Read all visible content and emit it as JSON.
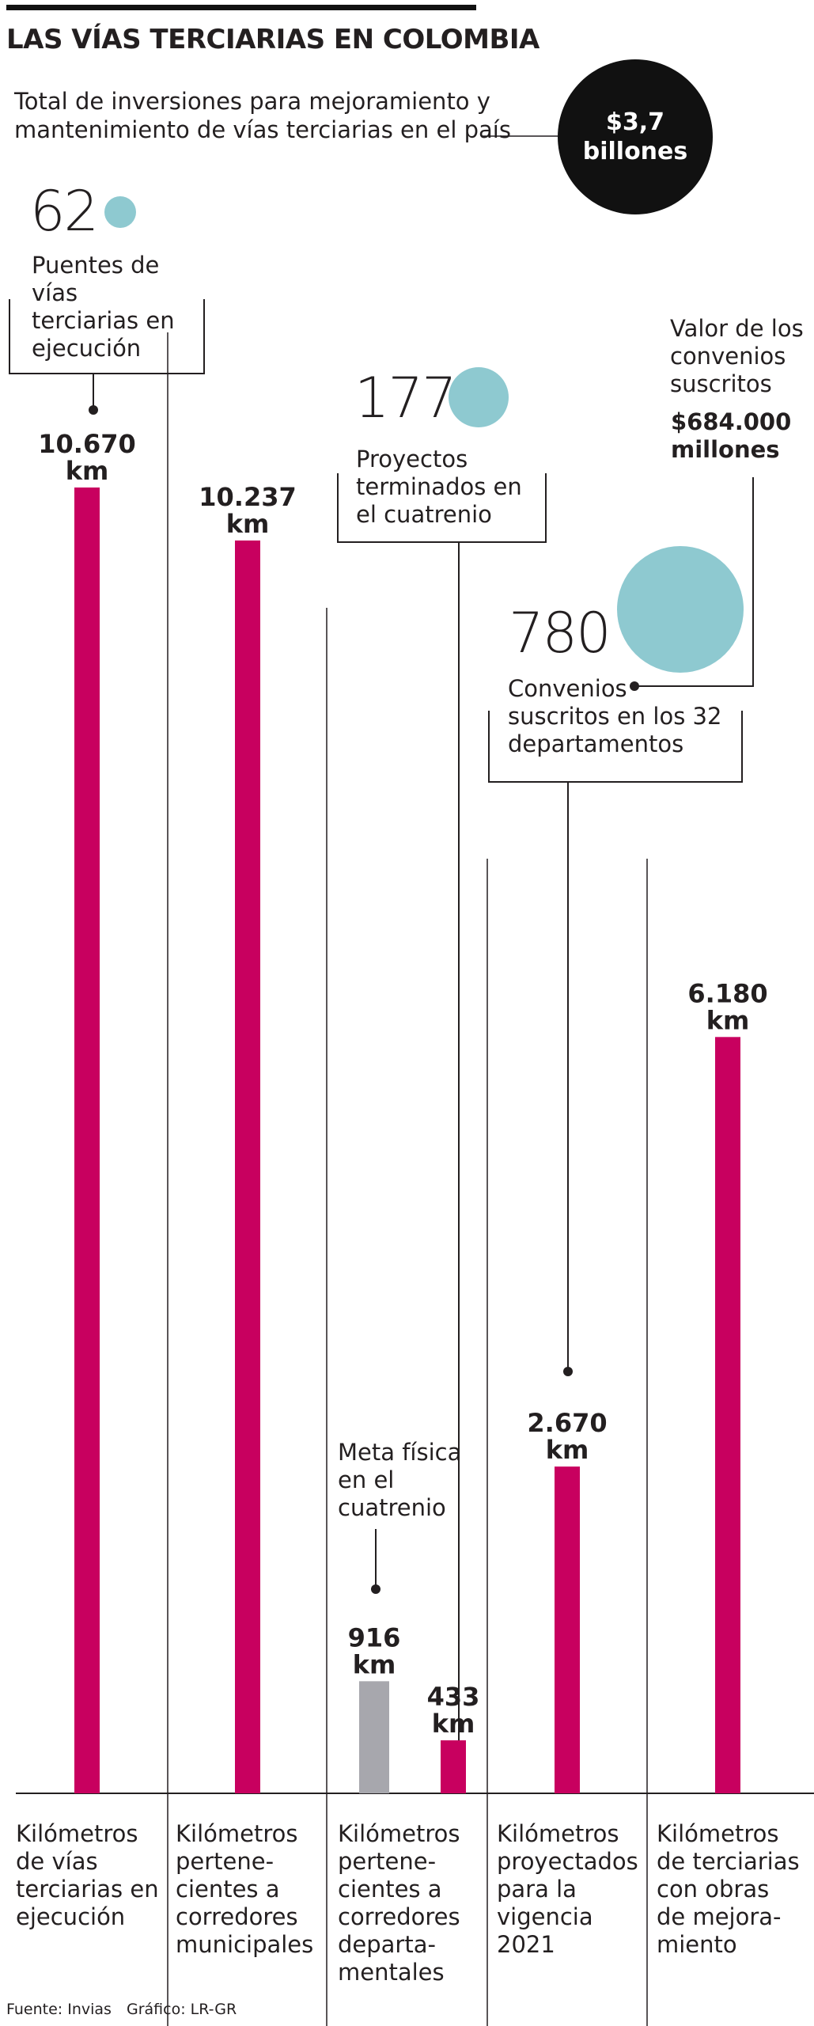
{
  "title": "LAS VÍAS TERCIARIAS EN COLOMBIA",
  "subtitle": "Total de inversiones para mejoramiento y mantenimiento de vías terciarias en el país",
  "total": {
    "line1": "$3,7",
    "line2": "billones"
  },
  "stats": {
    "bridges": {
      "number": "62",
      "label": "Puentes de vías terciarias en ejecución"
    },
    "projects": {
      "number": "177",
      "label": "Proyectos terminados en el cuatrenio"
    },
    "agreements": {
      "number": "780",
      "label": "Convenios suscritos en los 32 departamentos"
    },
    "agreement_value": {
      "label": "Valor de los convenios suscritos",
      "value_line1": "$684.000",
      "value_line2": "millones"
    }
  },
  "meta_label": "Meta física en el cuatrenio",
  "colors": {
    "bar": "#c8005f",
    "meta_bar": "#a7a7ad",
    "bubble": "#8ec9d0",
    "ink": "#231f20"
  },
  "chart_data": {
    "type": "bar",
    "unit": "km",
    "categories": [
      "Kilómetros de vías terciarias en ejecución",
      "Kilómetros pertene- cientes a corredores municipales",
      "Kilómetros pertene- cientes a corredores departa- mentales",
      "Kilómetros proyectados para la vigencia 2021",
      "Kilómetros de terciarias con obras de mejora- miento"
    ],
    "values": [
      10670,
      10237,
      433,
      2670,
      6180
    ],
    "value_labels": [
      "10.670",
      "10.237",
      "433",
      "2.670",
      "6.180"
    ],
    "meta": {
      "category_index": 2,
      "value": 916,
      "value_label": "916"
    },
    "col_labels": [
      [
        "Kilómetros",
        "de vías",
        "terciarias en",
        "ejecución"
      ],
      [
        "Kilómetros",
        "pertene-",
        "cientes a",
        "corredores",
        "municipales"
      ],
      [
        "Kilómetros",
        "pertene-",
        "cientes a",
        "corredores",
        "departa-",
        "mentales"
      ],
      [
        "Kilómetros",
        "proyectados",
        "para la",
        "vigencia",
        "2021"
      ],
      [
        "Kilómetros",
        "de terciarias",
        "con obras",
        "de mejora-",
        "miento"
      ]
    ]
  },
  "footer": {
    "source": "Fuente: Invias",
    "credit": "Gráfico: LR-GR"
  }
}
